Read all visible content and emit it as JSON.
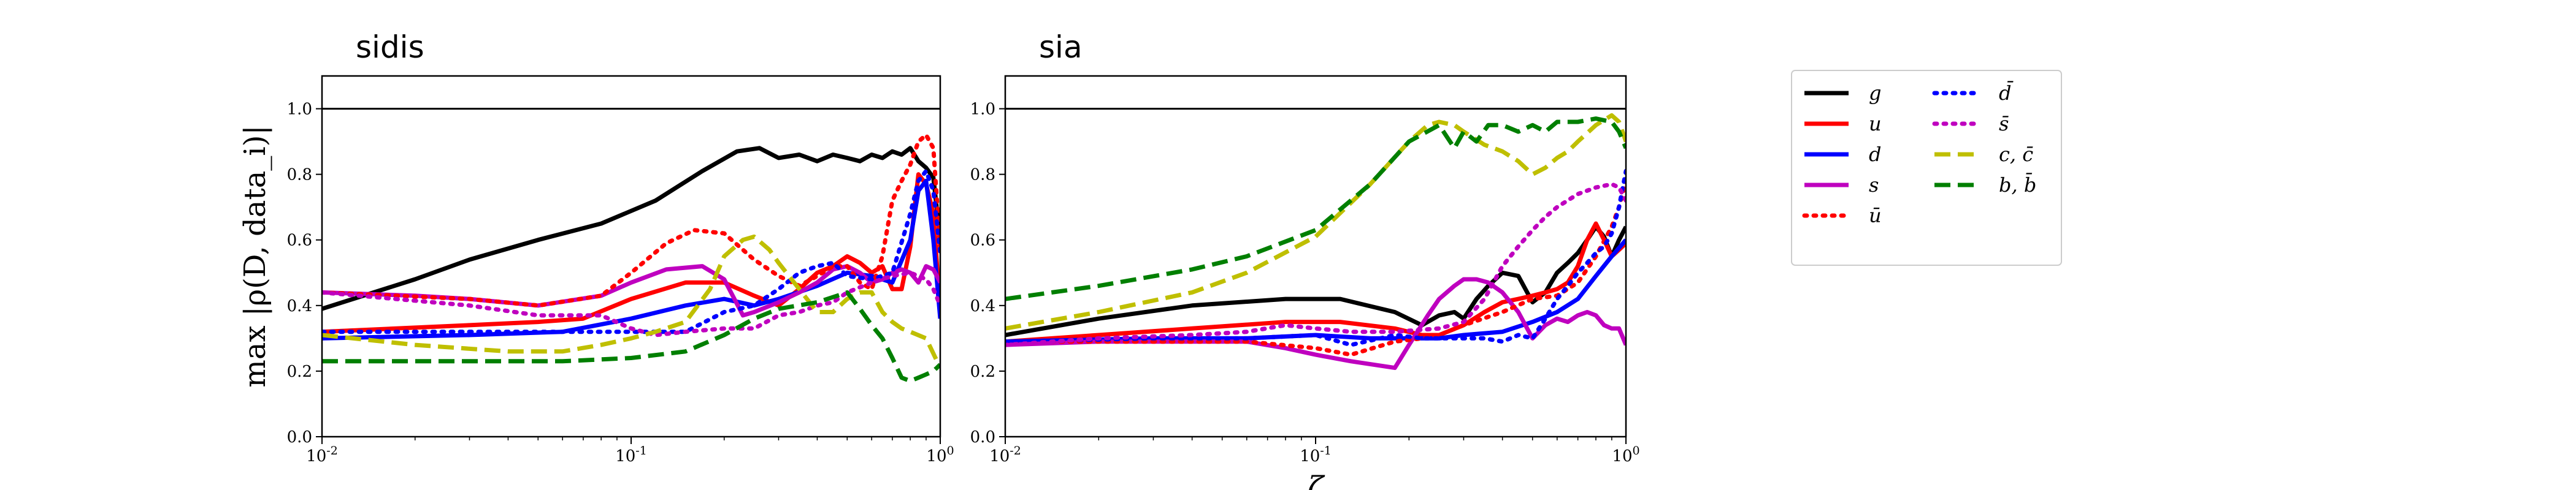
{
  "chart_data": [
    {
      "type": "line",
      "title": "sidis",
      "xlabel": "",
      "ylabel": "max |ρ(D, data_i)|",
      "xscale": "log",
      "xlim": [
        0.01,
        1
      ],
      "ylim": [
        0.0,
        1.1
      ],
      "yticks": [
        "0.0",
        "0.2",
        "0.4",
        "0.6",
        "0.8",
        "1.0"
      ],
      "xticks": [
        "10^-2",
        "10^-1",
        "10^0"
      ],
      "reference_line": 1.0,
      "series": [
        {
          "name": "g",
          "x": [
            0.01,
            0.02,
            0.03,
            0.05,
            0.08,
            0.12,
            0.17,
            0.22,
            0.26,
            0.3,
            0.35,
            0.4,
            0.45,
            0.5,
            0.55,
            0.6,
            0.65,
            0.7,
            0.75,
            0.8,
            0.85,
            0.9,
            0.95,
            1.0
          ],
          "y": [
            0.39,
            0.48,
            0.54,
            0.6,
            0.65,
            0.72,
            0.81,
            0.87,
            0.88,
            0.85,
            0.86,
            0.84,
            0.86,
            0.85,
            0.84,
            0.86,
            0.85,
            0.87,
            0.86,
            0.88,
            0.84,
            0.82,
            0.79,
            0.6
          ]
        },
        {
          "name": "u",
          "x": [
            0.01,
            0.03,
            0.05,
            0.07,
            0.1,
            0.15,
            0.2,
            0.25,
            0.3,
            0.35,
            0.4,
            0.45,
            0.5,
            0.55,
            0.6,
            0.65,
            0.7,
            0.75,
            0.8,
            0.85,
            0.9,
            0.95,
            1.0
          ],
          "y": [
            0.32,
            0.34,
            0.35,
            0.36,
            0.42,
            0.47,
            0.47,
            0.43,
            0.4,
            0.45,
            0.5,
            0.52,
            0.55,
            0.53,
            0.5,
            0.52,
            0.45,
            0.45,
            0.58,
            0.8,
            0.77,
            0.68,
            0.38
          ]
        },
        {
          "name": "d",
          "x": [
            0.01,
            0.03,
            0.06,
            0.1,
            0.15,
            0.2,
            0.25,
            0.3,
            0.4,
            0.5,
            0.6,
            0.7,
            0.8,
            0.85,
            0.9,
            0.95,
            1.0
          ],
          "y": [
            0.3,
            0.31,
            0.32,
            0.36,
            0.4,
            0.42,
            0.4,
            0.42,
            0.46,
            0.5,
            0.49,
            0.47,
            0.6,
            0.75,
            0.78,
            0.6,
            0.36
          ]
        },
        {
          "name": "s",
          "x": [
            0.01,
            0.02,
            0.03,
            0.05,
            0.08,
            0.1,
            0.13,
            0.17,
            0.2,
            0.23,
            0.25,
            0.3,
            0.35,
            0.4,
            0.45,
            0.5,
            0.55,
            0.6,
            0.65,
            0.7,
            0.75,
            0.8,
            0.85,
            0.9,
            0.95,
            1.0
          ],
          "y": [
            0.44,
            0.43,
            0.42,
            0.4,
            0.43,
            0.47,
            0.51,
            0.52,
            0.48,
            0.37,
            0.38,
            0.41,
            0.44,
            0.47,
            0.51,
            0.52,
            0.5,
            0.47,
            0.48,
            0.5,
            0.51,
            0.5,
            0.47,
            0.52,
            0.51,
            0.47
          ]
        },
        {
          "name": "ū",
          "x": [
            0.01,
            0.03,
            0.05,
            0.08,
            0.1,
            0.13,
            0.16,
            0.2,
            0.25,
            0.3,
            0.35,
            0.4,
            0.45,
            0.5,
            0.55,
            0.6,
            0.65,
            0.7,
            0.75,
            0.8,
            0.85,
            0.9,
            0.95,
            1.0
          ],
          "y": [
            0.44,
            0.42,
            0.4,
            0.43,
            0.5,
            0.59,
            0.63,
            0.62,
            0.54,
            0.49,
            0.46,
            0.49,
            0.52,
            0.52,
            0.47,
            0.45,
            0.55,
            0.72,
            0.78,
            0.83,
            0.9,
            0.92,
            0.88,
            0.57
          ]
        },
        {
          "name": "d̄",
          "x": [
            0.01,
            0.03,
            0.06,
            0.1,
            0.15,
            0.2,
            0.25,
            0.3,
            0.35,
            0.4,
            0.45,
            0.5,
            0.6,
            0.7,
            0.8,
            0.85,
            0.9,
            0.95,
            1.0
          ],
          "y": [
            0.32,
            0.32,
            0.32,
            0.32,
            0.32,
            0.38,
            0.4,
            0.45,
            0.5,
            0.52,
            0.53,
            0.49,
            0.48,
            0.5,
            0.68,
            0.78,
            0.81,
            0.75,
            0.56
          ]
        },
        {
          "name": "s̄",
          "x": [
            0.01,
            0.03,
            0.05,
            0.08,
            0.1,
            0.12,
            0.15,
            0.2,
            0.25,
            0.3,
            0.35,
            0.4,
            0.45,
            0.5,
            0.6,
            0.7,
            0.8,
            0.9,
            0.95,
            1.0
          ],
          "y": [
            0.44,
            0.4,
            0.37,
            0.37,
            0.33,
            0.31,
            0.32,
            0.33,
            0.33,
            0.37,
            0.38,
            0.4,
            0.41,
            0.44,
            0.47,
            0.49,
            0.5,
            0.48,
            0.45,
            0.4
          ]
        },
        {
          "name": "c, c̄",
          "x": [
            0.01,
            0.02,
            0.04,
            0.06,
            0.08,
            0.1,
            0.12,
            0.15,
            0.18,
            0.2,
            0.23,
            0.25,
            0.28,
            0.3,
            0.35,
            0.4,
            0.45,
            0.5,
            0.55,
            0.6,
            0.65,
            0.7,
            0.75,
            0.8,
            0.9,
            1.0
          ],
          "y": [
            0.31,
            0.28,
            0.26,
            0.26,
            0.28,
            0.3,
            0.32,
            0.35,
            0.45,
            0.55,
            0.6,
            0.61,
            0.57,
            0.53,
            0.45,
            0.38,
            0.38,
            0.42,
            0.44,
            0.44,
            0.38,
            0.35,
            0.33,
            0.32,
            0.3,
            0.21
          ]
        },
        {
          "name": "b, b̄",
          "x": [
            0.01,
            0.03,
            0.06,
            0.1,
            0.15,
            0.2,
            0.25,
            0.3,
            0.4,
            0.5,
            0.55,
            0.6,
            0.65,
            0.7,
            0.75,
            0.8,
            0.85,
            0.9,
            0.95,
            1.0
          ],
          "y": [
            0.23,
            0.23,
            0.23,
            0.24,
            0.26,
            0.31,
            0.36,
            0.39,
            0.41,
            0.44,
            0.39,
            0.34,
            0.3,
            0.24,
            0.18,
            0.17,
            0.18,
            0.19,
            0.2,
            0.22
          ]
        }
      ]
    },
    {
      "type": "line",
      "title": "sia",
      "xlabel": "ζ",
      "ylabel": "",
      "xscale": "log",
      "xlim": [
        0.01,
        1
      ],
      "ylim": [
        0.0,
        1.1
      ],
      "yticks": [
        "0.0",
        "0.2",
        "0.4",
        "0.6",
        "0.8",
        "1.0"
      ],
      "xticks": [
        "10^-2",
        "10^-1",
        "10^0"
      ],
      "reference_line": 1.0,
      "series": [
        {
          "name": "g",
          "x": [
            0.01,
            0.02,
            0.04,
            0.08,
            0.12,
            0.18,
            0.22,
            0.25,
            0.28,
            0.3,
            0.33,
            0.36,
            0.4,
            0.45,
            0.5,
            0.55,
            0.6,
            0.65,
            0.7,
            0.75,
            0.8,
            0.85,
            0.9,
            0.95,
            1.0
          ],
          "y": [
            0.31,
            0.36,
            0.4,
            0.42,
            0.42,
            0.38,
            0.34,
            0.37,
            0.38,
            0.36,
            0.42,
            0.46,
            0.5,
            0.49,
            0.41,
            0.44,
            0.5,
            0.53,
            0.56,
            0.6,
            0.64,
            0.61,
            0.55,
            0.6,
            0.64
          ]
        },
        {
          "name": "u",
          "x": [
            0.01,
            0.02,
            0.04,
            0.08,
            0.12,
            0.18,
            0.22,
            0.25,
            0.3,
            0.35,
            0.4,
            0.45,
            0.5,
            0.55,
            0.6,
            0.65,
            0.7,
            0.75,
            0.8,
            0.85,
            0.9,
            0.95,
            1.0
          ],
          "y": [
            0.29,
            0.31,
            0.33,
            0.35,
            0.35,
            0.33,
            0.31,
            0.31,
            0.34,
            0.38,
            0.41,
            0.42,
            0.43,
            0.44,
            0.45,
            0.47,
            0.52,
            0.6,
            0.65,
            0.6,
            0.55,
            0.57,
            0.59
          ]
        },
        {
          "name": "d",
          "x": [
            0.01,
            0.03,
            0.06,
            0.1,
            0.15,
            0.2,
            0.25,
            0.3,
            0.4,
            0.5,
            0.6,
            0.7,
            0.8,
            0.9,
            1.0
          ],
          "y": [
            0.29,
            0.3,
            0.3,
            0.31,
            0.3,
            0.3,
            0.3,
            0.31,
            0.32,
            0.35,
            0.38,
            0.42,
            0.49,
            0.55,
            0.6
          ]
        },
        {
          "name": "s",
          "x": [
            0.01,
            0.02,
            0.04,
            0.06,
            0.08,
            0.1,
            0.13,
            0.18,
            0.2,
            0.23,
            0.25,
            0.28,
            0.3,
            0.33,
            0.36,
            0.4,
            0.45,
            0.5,
            0.55,
            0.6,
            0.65,
            0.7,
            0.75,
            0.8,
            0.85,
            0.9,
            0.95,
            1.0
          ],
          "y": [
            0.28,
            0.29,
            0.29,
            0.29,
            0.27,
            0.25,
            0.23,
            0.21,
            0.28,
            0.37,
            0.42,
            0.46,
            0.48,
            0.48,
            0.47,
            0.44,
            0.38,
            0.3,
            0.34,
            0.36,
            0.35,
            0.37,
            0.38,
            0.37,
            0.34,
            0.33,
            0.33,
            0.28
          ]
        },
        {
          "name": "ū",
          "x": [
            0.01,
            0.03,
            0.06,
            0.1,
            0.13,
            0.18,
            0.22,
            0.25,
            0.3,
            0.4,
            0.5,
            0.6,
            0.7,
            0.8,
            0.9,
            0.95,
            1.0
          ],
          "y": [
            0.29,
            0.29,
            0.29,
            0.27,
            0.25,
            0.29,
            0.3,
            0.31,
            0.34,
            0.38,
            0.42,
            0.43,
            0.47,
            0.55,
            0.64,
            0.7,
            0.78
          ]
        },
        {
          "name": "d̄",
          "x": [
            0.01,
            0.03,
            0.06,
            0.1,
            0.13,
            0.18,
            0.22,
            0.25,
            0.3,
            0.35,
            0.4,
            0.45,
            0.5,
            0.55,
            0.6,
            0.65,
            0.7,
            0.75,
            0.8,
            0.85,
            0.9,
            0.95,
            1.0
          ],
          "y": [
            0.29,
            0.3,
            0.3,
            0.31,
            0.28,
            0.31,
            0.3,
            0.3,
            0.3,
            0.3,
            0.29,
            0.31,
            0.3,
            0.36,
            0.42,
            0.46,
            0.5,
            0.53,
            0.56,
            0.58,
            0.62,
            0.7,
            0.81
          ]
        },
        {
          "name": "s̄",
          "x": [
            0.01,
            0.02,
            0.04,
            0.06,
            0.08,
            0.1,
            0.13,
            0.18,
            0.25,
            0.3,
            0.35,
            0.4,
            0.45,
            0.5,
            0.55,
            0.6,
            0.7,
            0.8,
            0.9,
            0.95,
            1.0
          ],
          "y": [
            0.28,
            0.3,
            0.31,
            0.32,
            0.34,
            0.33,
            0.32,
            0.32,
            0.33,
            0.35,
            0.42,
            0.52,
            0.58,
            0.63,
            0.67,
            0.7,
            0.74,
            0.76,
            0.77,
            0.76,
            0.72
          ]
        },
        {
          "name": "c, c̄",
          "x": [
            0.01,
            0.02,
            0.04,
            0.06,
            0.1,
            0.15,
            0.2,
            0.23,
            0.25,
            0.28,
            0.3,
            0.35,
            0.4,
            0.45,
            0.5,
            0.55,
            0.6,
            0.65,
            0.7,
            0.8,
            0.9,
            0.95,
            1.0
          ],
          "y": [
            0.33,
            0.38,
            0.44,
            0.5,
            0.61,
            0.77,
            0.9,
            0.95,
            0.96,
            0.95,
            0.93,
            0.89,
            0.87,
            0.84,
            0.8,
            0.82,
            0.85,
            0.87,
            0.9,
            0.95,
            0.98,
            0.96,
            0.9
          ]
        },
        {
          "name": "b, b̄",
          "x": [
            0.01,
            0.02,
            0.04,
            0.06,
            0.1,
            0.15,
            0.2,
            0.25,
            0.28,
            0.3,
            0.33,
            0.36,
            0.4,
            0.45,
            0.5,
            0.55,
            0.6,
            0.7,
            0.8,
            0.9,
            0.95,
            1.0
          ],
          "y": [
            0.42,
            0.46,
            0.51,
            0.55,
            0.63,
            0.77,
            0.9,
            0.95,
            0.88,
            0.93,
            0.9,
            0.95,
            0.95,
            0.93,
            0.95,
            0.93,
            0.96,
            0.96,
            0.97,
            0.96,
            0.93,
            0.88
          ]
        }
      ]
    }
  ],
  "legend": {
    "placement": "right",
    "columns": [
      [
        {
          "label": "g",
          "color": "#000000",
          "style": "solid"
        },
        {
          "label": "u",
          "color": "#ff0000",
          "style": "solid"
        },
        {
          "label": "d",
          "color": "#0000ff",
          "style": "solid"
        },
        {
          "label": "s",
          "color": "#bf00bf",
          "style": "solid"
        },
        {
          "label": "ū",
          "color": "#ff0000",
          "style": "dotted"
        }
      ],
      [
        {
          "label": "d̄",
          "color": "#0000ff",
          "style": "dotted"
        },
        {
          "label": "s̄",
          "color": "#bf00bf",
          "style": "dotted"
        },
        {
          "label": "c, c̄",
          "color": "#bfbf00",
          "style": "dashed"
        },
        {
          "label": "b, b̄",
          "color": "#007f00",
          "style": "dashed"
        }
      ]
    ]
  },
  "colors": {
    "g": "#000000",
    "u": "#ff0000",
    "d": "#0000ff",
    "s": "#bf00bf",
    "ū": "#ff0000",
    "d̄": "#0000ff",
    "s̄": "#bf00bf",
    "c, c̄": "#bfbf00",
    "b, b̄": "#007f00"
  }
}
